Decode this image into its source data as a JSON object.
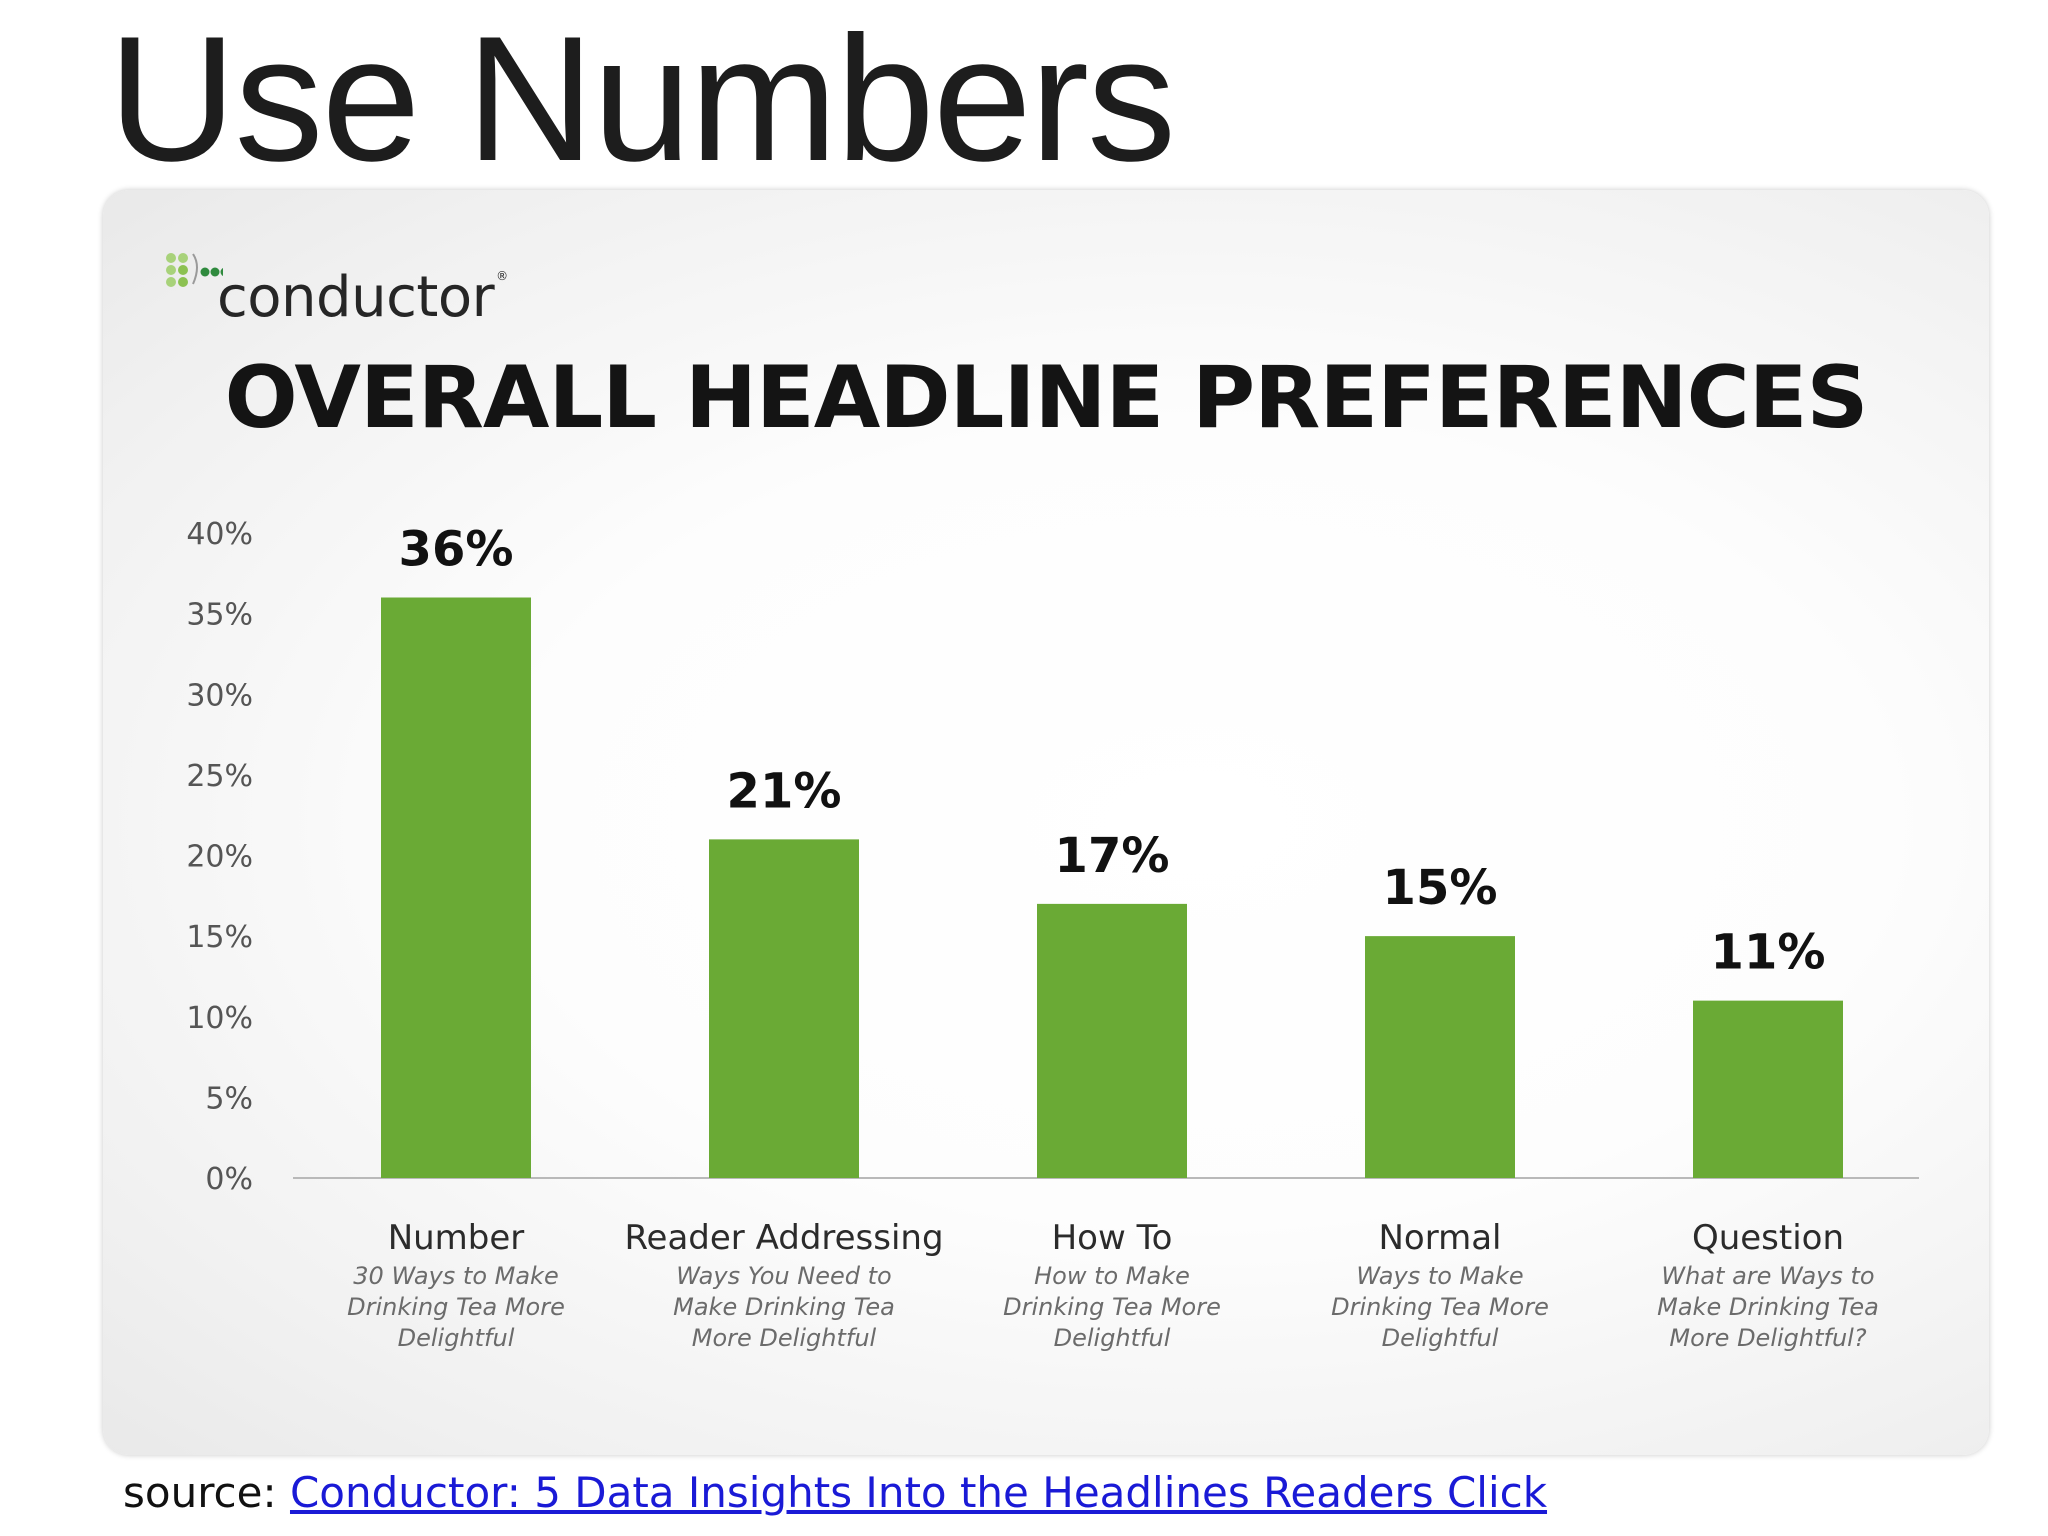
{
  "slide": {
    "title": "Use Numbers",
    "source_prefix": "source: ",
    "source_link": "Conductor: 5 Data Insights Into the Headlines Readers Click"
  },
  "logo": {
    "name": "conductor"
  },
  "chart_data": {
    "type": "bar",
    "title": "OVERALL HEADLINE PREFERENCES",
    "categories": [
      "Number",
      "Reader Addressing",
      "How To",
      "Normal",
      "Question"
    ],
    "subtitles": [
      [
        "30 Ways to Make",
        "Drinking Tea More",
        "Delightful"
      ],
      [
        "Ways You Need to",
        "Make Drinking Tea",
        "More Delightful"
      ],
      [
        "How to Make",
        "Drinking Tea More",
        "Delightful"
      ],
      [
        "Ways to Make",
        "Drinking Tea More",
        "Delightful"
      ],
      [
        "What are Ways to",
        "Make Drinking Tea",
        "More Delightful?"
      ]
    ],
    "values": [
      36,
      21,
      17,
      15,
      11
    ],
    "value_labels": [
      "36%",
      "21%",
      "17%",
      "15%",
      "11%"
    ],
    "yticks": [
      "0%",
      "5%",
      "10%",
      "15%",
      "20%",
      "25%",
      "30%",
      "35%",
      "40%"
    ],
    "ylim": [
      0,
      40
    ],
    "bar_color": "#6aaa35",
    "grid": false,
    "legend": "none"
  }
}
